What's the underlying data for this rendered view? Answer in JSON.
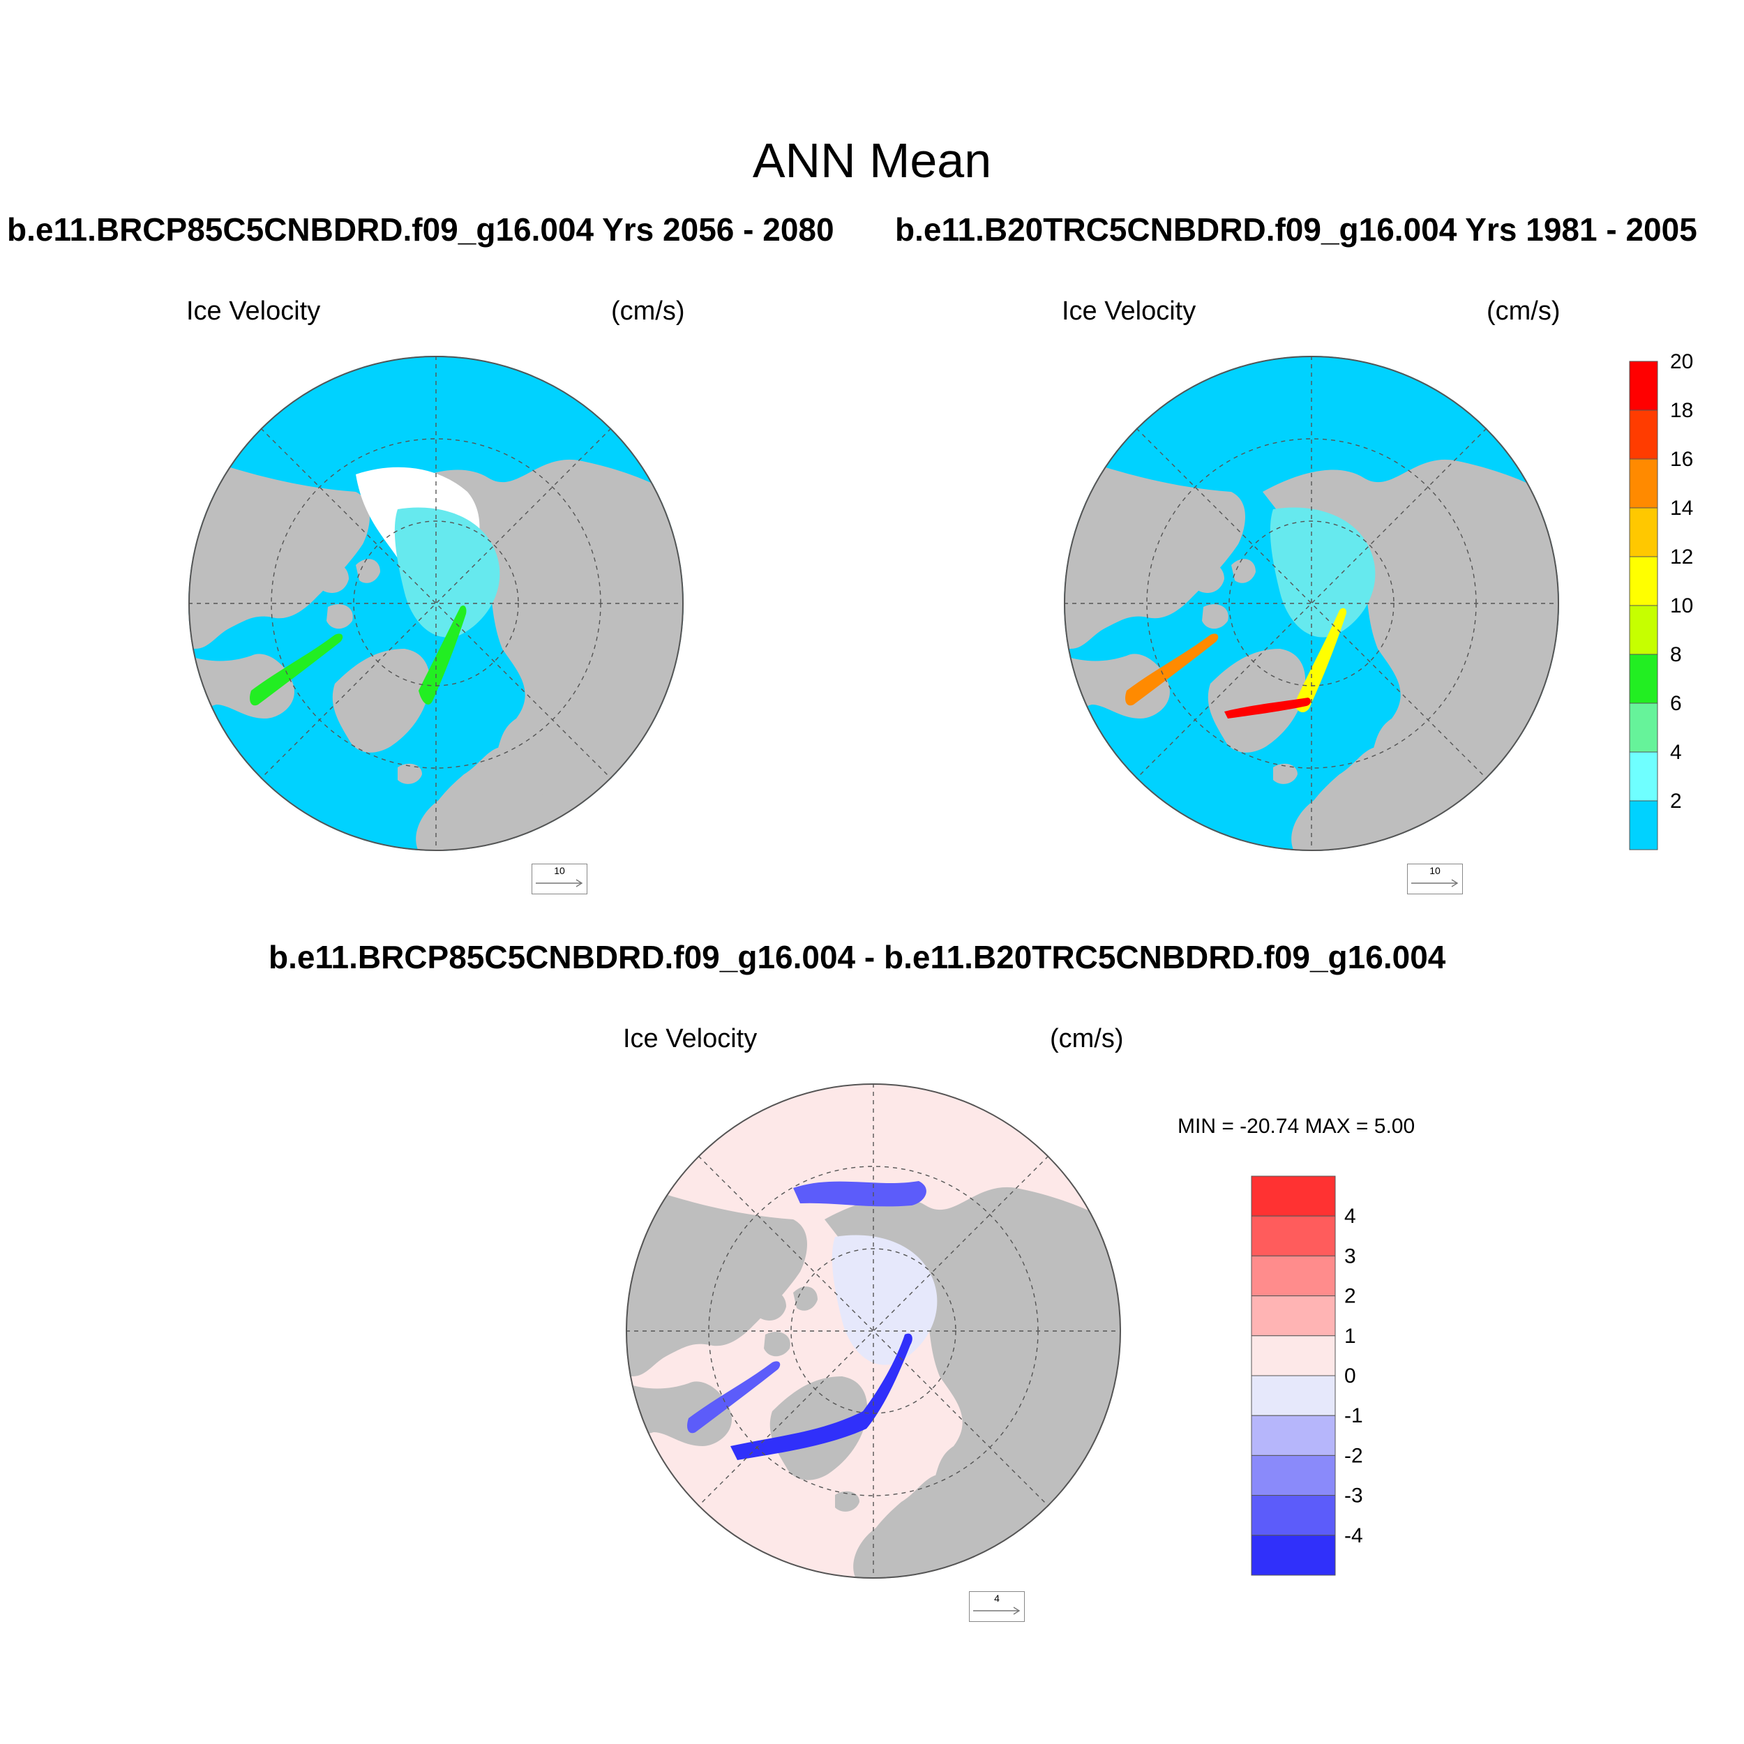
{
  "figure": {
    "title": "ANN Mean",
    "case1": "b.e11.BRCP85C5CNBDRD.f09_g16.004  Yrs 2056 - 2080",
    "case2": "b.e11.B20TRC5CNBDRD.f09_g16.004  Yrs 1981 - 2005",
    "diff_title": "b.e11.BRCP85C5CNBDRD.f09_g16.004 - b.e11.B20TRC5CNBDRD.f09_g16.004"
  },
  "panels": [
    {
      "id": "case1",
      "variable": "Ice Velocity",
      "units": "(cm/s)",
      "ref_vector": "10"
    },
    {
      "id": "case2",
      "variable": "Ice Velocity",
      "units": "(cm/s)",
      "ref_vector": "10"
    },
    {
      "id": "diff",
      "variable": "Ice Velocity",
      "units": "(cm/s)",
      "ref_vector": "4",
      "min_max_text": "MIN = -20.74 MAX =   5.00"
    }
  ],
  "colors": {
    "land": "#bebebe",
    "low_speed": "#00d2ff",
    "ice": "#66e9ee",
    "missing": "#ffffff",
    "diff_background": "#fde8e8",
    "diff_ice": "#e6e8fb"
  },
  "colorbar_speed": {
    "labels": [
      "2",
      "4",
      "6",
      "8",
      "10",
      "12",
      "14",
      "16",
      "18",
      "20"
    ],
    "colors": [
      "#00d2ff",
      "#6fffff",
      "#66f39a",
      "#22ee22",
      "#c6ff00",
      "#ffff00",
      "#ffc800",
      "#ff8a00",
      "#ff3c00",
      "#ff0000"
    ]
  },
  "colorbar_diff": {
    "labels": [
      "4",
      "3",
      "2",
      "1",
      "0",
      "-1",
      "-2",
      "-3",
      "-4"
    ],
    "colors": [
      "#ff3232",
      "#ff5c5c",
      "#ff8c8c",
      "#ffb4b4",
      "#fde8e8",
      "#e6e8fb",
      "#b6b6fb",
      "#8a8afa",
      "#5c5cfa",
      "#3030fa"
    ]
  }
}
